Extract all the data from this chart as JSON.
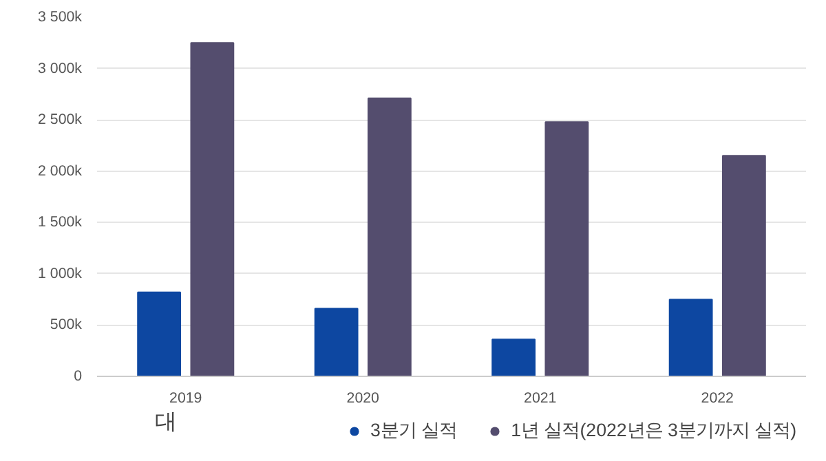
{
  "chart_data": {
    "type": "bar",
    "categories": [
      "2019",
      "2020",
      "2021",
      "2022"
    ],
    "series": [
      {
        "name": "3분기 실적",
        "color": "#0d47a1",
        "values": [
          820,
          660,
          360,
          750
        ]
      },
      {
        "name": "1년 실적(2022년은 3분기까지 실적)",
        "color": "#544d6e",
        "values": [
          3250,
          2710,
          2480,
          2150
        ]
      }
    ],
    "ylim": [
      0,
      3500
    ],
    "yticks": [
      {
        "value": 0,
        "label": "0"
      },
      {
        "value": 500,
        "label": "500k"
      },
      {
        "value": 1000,
        "label": "1 000k"
      },
      {
        "value": 1500,
        "label": "1 500k"
      },
      {
        "value": 2000,
        "label": "2 000k"
      },
      {
        "value": 2500,
        "label": "2 500k"
      },
      {
        "value": 3000,
        "label": "3 000k"
      },
      {
        "value": 3500,
        "label": "3 500k"
      }
    ],
    "grid": "y",
    "legend": "bottom",
    "annotations": [
      "대"
    ]
  }
}
